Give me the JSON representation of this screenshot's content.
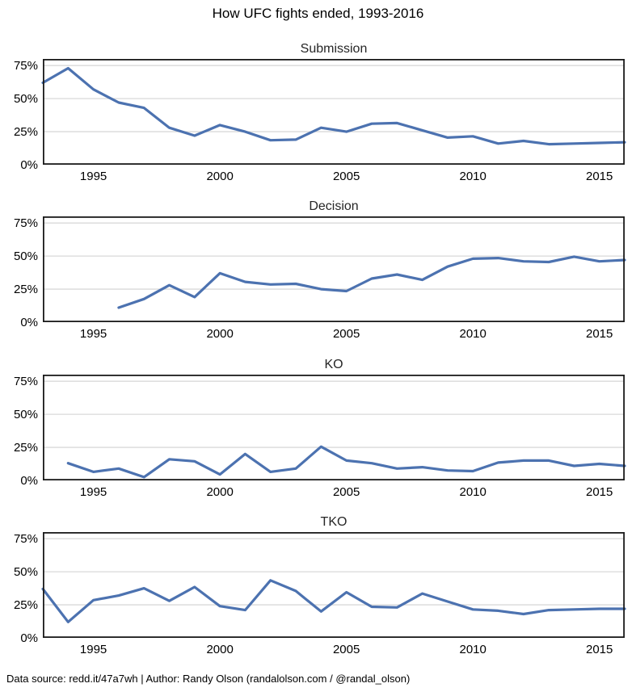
{
  "title": "How UFC fights ended, 1993-2016",
  "footer": "Data source: redd.it/47a7wh | Author: Randy Olson (randalolson.com / @randal_olson)",
  "colors": {
    "line": "#4C72B0",
    "grid": "#D9D9D9",
    "spine": "#1A1A1A",
    "title_text": "#262626",
    "tick_text": "#000000"
  },
  "chart_data": [
    {
      "type": "line",
      "title": "Submission",
      "x": [
        1993,
        1994,
        1995,
        1996,
        1997,
        1998,
        1999,
        2000,
        2001,
        2002,
        2003,
        2004,
        2005,
        2006,
        2007,
        2008,
        2009,
        2010,
        2011,
        2012,
        2013,
        2014,
        2015,
        2016
      ],
      "values": [
        62,
        73,
        57,
        47,
        43,
        28,
        22,
        30,
        25,
        18.5,
        19,
        28,
        25,
        31,
        31.5,
        26,
        20.5,
        21.5,
        16,
        18,
        15.5,
        16,
        16.5,
        17
      ],
      "xlim": [
        1993,
        2016
      ],
      "ylim": [
        0,
        80
      ],
      "yticks": [
        0,
        25,
        50,
        75
      ],
      "ytick_labels": [
        "0%",
        "25%",
        "50%",
        "75%"
      ],
      "xticks": [
        1995,
        2000,
        2005,
        2010,
        2015
      ],
      "grid": "horizontal",
      "legend": "none"
    },
    {
      "type": "line",
      "title": "Decision",
      "x": [
        1996,
        1997,
        1998,
        1999,
        2000,
        2001,
        2002,
        2003,
        2004,
        2005,
        2006,
        2007,
        2008,
        2009,
        2010,
        2011,
        2012,
        2013,
        2014,
        2015,
        2016
      ],
      "values": [
        11,
        17.5,
        28,
        19,
        37,
        30.5,
        28.5,
        29,
        25,
        23.5,
        33,
        36,
        32,
        42,
        48,
        48.5,
        46,
        45.5,
        49.5,
        46,
        47
      ],
      "xlim": [
        1993,
        2016
      ],
      "ylim": [
        0,
        80
      ],
      "yticks": [
        0,
        25,
        50,
        75
      ],
      "ytick_labels": [
        "0%",
        "25%",
        "50%",
        "75%"
      ],
      "xticks": [
        1995,
        2000,
        2005,
        2010,
        2015
      ],
      "grid": "horizontal",
      "legend": "none"
    },
    {
      "type": "line",
      "title": "KO",
      "x": [
        1994,
        1995,
        1996,
        1997,
        1998,
        1999,
        2000,
        2001,
        2002,
        2003,
        2004,
        2005,
        2006,
        2007,
        2008,
        2009,
        2010,
        2011,
        2012,
        2013,
        2014,
        2015,
        2016
      ],
      "values": [
        13,
        6.5,
        9,
        2.5,
        16,
        14.5,
        4.5,
        20,
        6.5,
        9,
        25.5,
        15,
        13,
        9,
        10,
        7.5,
        7,
        13.5,
        15,
        15,
        11,
        12.5,
        11
      ],
      "xlim": [
        1993,
        2016
      ],
      "ylim": [
        0,
        80
      ],
      "yticks": [
        0,
        25,
        50,
        75
      ],
      "ytick_labels": [
        "0%",
        "25%",
        "50%",
        "75%"
      ],
      "xticks": [
        1995,
        2000,
        2005,
        2010,
        2015
      ],
      "grid": "horizontal",
      "legend": "none"
    },
    {
      "type": "line",
      "title": "TKO",
      "x": [
        1993,
        1994,
        1995,
        1996,
        1997,
        1998,
        1999,
        2000,
        2001,
        2002,
        2003,
        2004,
        2005,
        2006,
        2007,
        2008,
        2009,
        2010,
        2011,
        2012,
        2013,
        2014,
        2015,
        2016
      ],
      "values": [
        37,
        12,
        28.5,
        32,
        37.5,
        28,
        38.5,
        24,
        21,
        43.5,
        35.5,
        20,
        34.5,
        23.5,
        23,
        33.5,
        27.5,
        21.5,
        20.5,
        18,
        21,
        21.5,
        22,
        22
      ],
      "xlim": [
        1993,
        2016
      ],
      "ylim": [
        0,
        80
      ],
      "yticks": [
        0,
        25,
        50,
        75
      ],
      "ytick_labels": [
        "0%",
        "25%",
        "50%",
        "75%"
      ],
      "xticks": [
        1995,
        2000,
        2005,
        2010,
        2015
      ],
      "grid": "horizontal",
      "legend": "none"
    }
  ]
}
